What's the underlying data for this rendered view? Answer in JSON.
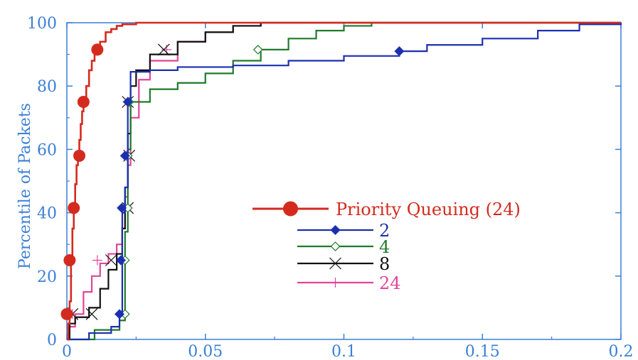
{
  "chart_data": {
    "type": "line",
    "title": "",
    "xlabel": "",
    "ylabel": "Percentile of Packets",
    "xlim": [
      0,
      0.2
    ],
    "ylim": [
      0,
      100
    ],
    "xticks": [
      "0",
      "0.05",
      "0.1",
      "0.15",
      "0.2"
    ],
    "yticks": [
      "0",
      "20",
      "40",
      "60",
      "80",
      "100"
    ],
    "grid": false,
    "legend_position": "center-right",
    "series": [
      {
        "name": "Priority Queuing (24)",
        "color": "#d42a1e",
        "marker": "filled-circle",
        "x": [
          0,
          0.0005,
          0.001,
          0.0015,
          0.002,
          0.0025,
          0.003,
          0.0035,
          0.004,
          0.0045,
          0.005,
          0.0055,
          0.006,
          0.007,
          0.008,
          0.009,
          0.01,
          0.011,
          0.012,
          0.014,
          0.016,
          0.018,
          0.02,
          0.025,
          0.2
        ],
        "y": [
          0,
          5,
          12,
          25,
          35,
          42,
          49,
          55,
          58,
          63,
          68,
          72,
          75,
          80,
          85,
          88,
          90,
          92,
          94,
          97,
          98,
          99,
          99.5,
          100,
          100
        ],
        "markers": [
          [
            0,
            8
          ],
          [
            0.001,
            25
          ],
          [
            0.0025,
            41.5
          ],
          [
            0.0045,
            58
          ],
          [
            0.006,
            75
          ],
          [
            0.011,
            91.5
          ]
        ]
      },
      {
        "name": "2",
        "color": "#1b2fb0",
        "marker": "filled-diamond",
        "x": [
          0,
          0.008,
          0.016,
          0.019,
          0.02,
          0.021,
          0.022,
          0.023,
          0.03,
          0.04,
          0.06,
          0.08,
          0.1,
          0.12,
          0.13,
          0.15,
          0.17,
          0.185,
          0.2
        ],
        "y": [
          0,
          2,
          4,
          8,
          40,
          48,
          75,
          84.5,
          85,
          86,
          86.5,
          88,
          89.5,
          91,
          93,
          95,
          97.5,
          99.5,
          100
        ],
        "markers": [
          [
            0.019,
            8
          ],
          [
            0.0195,
            25
          ],
          [
            0.0198,
            41.5
          ],
          [
            0.021,
            58
          ],
          [
            0.022,
            75
          ],
          [
            0.12,
            91
          ]
        ]
      },
      {
        "name": "4",
        "color": "#1f7a2a",
        "marker": "open-diamond",
        "x": [
          0,
          0.01,
          0.019,
          0.021,
          0.022,
          0.023,
          0.03,
          0.04,
          0.05,
          0.06,
          0.07,
          0.08,
          0.09,
          0.1,
          0.11,
          0.2
        ],
        "y": [
          0,
          3,
          6,
          34,
          60,
          75,
          79,
          81,
          84,
          88,
          91.5,
          95,
          97.5,
          99,
          100,
          100
        ],
        "markers": [
          [
            0.021,
            8
          ],
          [
            0.021,
            25
          ],
          [
            0.022,
            41.5
          ],
          [
            0.022,
            58
          ],
          [
            0.0225,
            75
          ],
          [
            0.069,
            91.5
          ]
        ]
      },
      {
        "name": "8",
        "color": "#111111",
        "marker": "x",
        "x": [
          0,
          0.001,
          0.003,
          0.008,
          0.012,
          0.015,
          0.018,
          0.02,
          0.021,
          0.022,
          0.023,
          0.025,
          0.03,
          0.04,
          0.05,
          0.06,
          0.07,
          0.2
        ],
        "y": [
          0,
          5,
          7,
          10,
          16,
          22,
          27,
          35,
          48,
          65,
          80,
          85,
          90,
          94,
          97,
          99,
          100,
          100
        ],
        "markers": [
          [
            0.002,
            8
          ],
          [
            0.009,
            8
          ],
          [
            0.016,
            25
          ],
          [
            0.022,
            41.5
          ],
          [
            0.0225,
            58
          ],
          [
            0.022,
            75
          ],
          [
            0.035,
            91.5
          ]
        ]
      },
      {
        "name": "24",
        "color": "#e0459a",
        "marker": "plus",
        "x": [
          0,
          0.001,
          0.003,
          0.006,
          0.009,
          0.012,
          0.015,
          0.018,
          0.02,
          0.021,
          0.022,
          0.023,
          0.026,
          0.03,
          0.04,
          0.05,
          0.06,
          0.07,
          0.2
        ],
        "y": [
          0,
          4,
          8,
          15,
          20,
          24,
          27,
          30,
          35,
          45,
          55,
          70,
          82,
          88,
          94,
          97,
          99,
          100,
          100
        ],
        "markers": [
          [
            0.002,
            8
          ],
          [
            0.011,
            25
          ],
          [
            0.021,
            41.5
          ],
          [
            0.0215,
            58
          ],
          [
            0.022,
            75
          ],
          [
            0.036,
            91.5
          ]
        ]
      }
    ]
  }
}
